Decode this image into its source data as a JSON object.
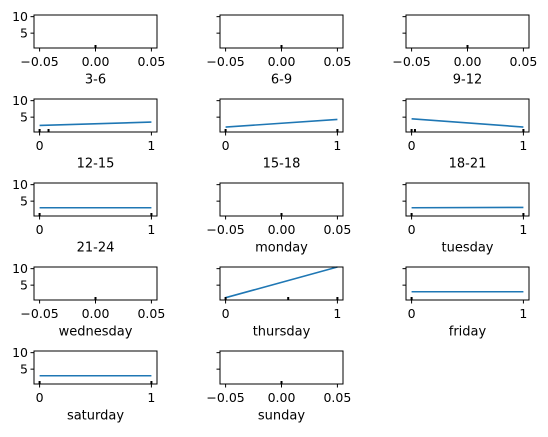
{
  "colors": {
    "line": "#1f77b4",
    "axes": "#000000",
    "marker": "#000000"
  },
  "chart_data": [
    {
      "type": "line",
      "xlabel": "",
      "xlim": [
        -0.055,
        0.055
      ],
      "ylim": [
        0.5,
        10.5
      ],
      "xticks": [
        -0.05,
        0.0,
        0.05
      ],
      "xtick_labels": [
        "−0.05",
        "0.00",
        "0.05"
      ],
      "yticks": [
        5,
        10
      ],
      "ytick_labels": [
        "5",
        "10"
      ],
      "show_ytick_labels": true,
      "series": [
        {
          "x": [
            0
          ],
          "y": [
            1
          ]
        }
      ],
      "markers": [
        {
          "x": 0,
          "y": 1
        }
      ]
    },
    {
      "type": "line",
      "xlabel": "",
      "xlim": [
        -0.055,
        0.055
      ],
      "ylim": [
        0.5,
        10.5
      ],
      "xticks": [
        -0.05,
        0.0,
        0.05
      ],
      "xtick_labels": [
        "−0.05",
        "0.00",
        "0.05"
      ],
      "yticks": [
        5,
        10
      ],
      "ytick_labels": [
        "5",
        "10"
      ],
      "show_ytick_labels": false,
      "series": [
        {
          "x": [
            0
          ],
          "y": [
            1
          ]
        }
      ],
      "markers": [
        {
          "x": 0,
          "y": 1
        }
      ]
    },
    {
      "type": "line",
      "xlabel": "",
      "xlim": [
        -0.055,
        0.055
      ],
      "ylim": [
        0.5,
        10.5
      ],
      "xticks": [
        -0.05,
        0.0,
        0.05
      ],
      "xtick_labels": [
        "−0.05",
        "0.00",
        "0.05"
      ],
      "yticks": [
        5,
        10
      ],
      "ytick_labels": [
        "5",
        "10"
      ],
      "show_ytick_labels": false,
      "series": [
        {
          "x": [
            0
          ],
          "y": [
            1
          ]
        }
      ],
      "markers": [
        {
          "x": 0,
          "y": 1
        }
      ]
    },
    {
      "type": "line",
      "xlabel": "3-6",
      "xlim": [
        -0.05,
        1.05
      ],
      "ylim": [
        0.5,
        10.5
      ],
      "xticks": [
        0,
        1
      ],
      "xtick_labels": [
        "0",
        "1"
      ],
      "yticks": [
        5,
        10
      ],
      "ytick_labels": [
        "5",
        "10"
      ],
      "show_ytick_labels": true,
      "series": [
        {
          "x": [
            0,
            1
          ],
          "y": [
            2.5,
            3.5
          ]
        }
      ],
      "markers": [
        {
          "x": 0,
          "y": 1
        },
        {
          "x": 0.08,
          "y": 1
        }
      ]
    },
    {
      "type": "line",
      "xlabel": "6-9",
      "xlim": [
        -0.05,
        1.05
      ],
      "ylim": [
        0.5,
        10.5
      ],
      "xticks": [
        0,
        1
      ],
      "xtick_labels": [
        "0",
        "1"
      ],
      "yticks": [
        5,
        10
      ],
      "ytick_labels": [
        "5",
        "10"
      ],
      "show_ytick_labels": false,
      "series": [
        {
          "x": [
            0,
            1
          ],
          "y": [
            2,
            4.3
          ]
        }
      ],
      "markers": [
        {
          "x": 0,
          "y": 1
        },
        {
          "x": 1,
          "y": 1
        }
      ]
    },
    {
      "type": "line",
      "xlabel": "9-12",
      "xlim": [
        -0.05,
        1.05
      ],
      "ylim": [
        0.5,
        10.5
      ],
      "xticks": [
        0,
        1
      ],
      "xtick_labels": [
        "0",
        "1"
      ],
      "yticks": [
        5,
        10
      ],
      "ytick_labels": [
        "5",
        "10"
      ],
      "show_ytick_labels": false,
      "series": [
        {
          "x": [
            0,
            1
          ],
          "y": [
            4.5,
            2
          ]
        }
      ],
      "markers": [
        {
          "x": 0,
          "y": 1
        },
        {
          "x": 0.03,
          "y": 1
        },
        {
          "x": 1,
          "y": 1
        }
      ]
    },
    {
      "type": "line",
      "xlabel": "12-15",
      "xlim": [
        -0.05,
        1.05
      ],
      "ylim": [
        0.5,
        10.5
      ],
      "xticks": [
        0,
        1
      ],
      "xtick_labels": [
        "0",
        "1"
      ],
      "yticks": [
        5,
        10
      ],
      "ytick_labels": [
        "5",
        "10"
      ],
      "show_ytick_labels": true,
      "series": [
        {
          "x": [
            0,
            1
          ],
          "y": [
            3,
            3
          ]
        }
      ],
      "markers": [
        {
          "x": 0,
          "y": 1
        },
        {
          "x": 1,
          "y": 1
        }
      ]
    },
    {
      "type": "line",
      "xlabel": "15-18",
      "xlim": [
        -0.055,
        0.055
      ],
      "ylim": [
        0.5,
        10.5
      ],
      "xticks": [
        -0.05,
        0.0,
        0.05
      ],
      "xtick_labels": [
        "−0.05",
        "0.00",
        "0.05"
      ],
      "yticks": [
        5,
        10
      ],
      "ytick_labels": [
        "5",
        "10"
      ],
      "show_ytick_labels": false,
      "series": [
        {
          "x": [
            0
          ],
          "y": [
            1
          ]
        }
      ],
      "markers": [
        {
          "x": 0,
          "y": 1
        }
      ]
    },
    {
      "type": "line",
      "xlabel": "18-21",
      "xlim": [
        -0.05,
        1.05
      ],
      "ylim": [
        0.5,
        10.5
      ],
      "xticks": [
        0,
        1
      ],
      "xtick_labels": [
        "0",
        "1"
      ],
      "yticks": [
        5,
        10
      ],
      "ytick_labels": [
        "5",
        "10"
      ],
      "show_ytick_labels": false,
      "series": [
        {
          "x": [
            0,
            1
          ],
          "y": [
            3,
            3.1
          ]
        }
      ],
      "markers": [
        {
          "x": 0,
          "y": 1
        },
        {
          "x": 1,
          "y": 1
        }
      ]
    },
    {
      "type": "line",
      "xlabel": "21-24",
      "xlim": [
        -0.055,
        0.055
      ],
      "ylim": [
        0.5,
        10.5
      ],
      "xticks": [
        -0.05,
        0.0,
        0.05
      ],
      "xtick_labels": [
        "−0.05",
        "0.00",
        "0.05"
      ],
      "yticks": [
        5,
        10
      ],
      "ytick_labels": [
        "5",
        "10"
      ],
      "show_ytick_labels": true,
      "series": [
        {
          "x": [
            0
          ],
          "y": [
            1
          ]
        }
      ],
      "markers": [
        {
          "x": 0,
          "y": 1
        }
      ]
    },
    {
      "type": "line",
      "xlabel": "monday",
      "xlim": [
        -0.05,
        1.05
      ],
      "ylim": [
        0.5,
        10.5
      ],
      "xticks": [
        0,
        1
      ],
      "xtick_labels": [
        "0",
        "1"
      ],
      "yticks": [
        5,
        10
      ],
      "ytick_labels": [
        "5",
        "10"
      ],
      "show_ytick_labels": false,
      "series": [
        {
          "x": [
            0,
            1
          ],
          "y": [
            1.2,
            10.5
          ]
        }
      ],
      "markers": [
        {
          "x": 0,
          "y": 1
        },
        {
          "x": 0.56,
          "y": 1
        },
        {
          "x": 1,
          "y": 1
        }
      ]
    },
    {
      "type": "line",
      "xlabel": "tuesday",
      "xlim": [
        -0.05,
        1.05
      ],
      "ylim": [
        0.5,
        10.5
      ],
      "xticks": [
        0,
        1
      ],
      "xtick_labels": [
        "0",
        "1"
      ],
      "yticks": [
        5,
        10
      ],
      "ytick_labels": [
        "5",
        "10"
      ],
      "show_ytick_labels": false,
      "series": [
        {
          "x": [
            0,
            1
          ],
          "y": [
            3,
            3
          ]
        }
      ],
      "markers": [
        {
          "x": 0,
          "y": 1
        }
      ]
    },
    {
      "type": "line",
      "xlabel": "wednesday",
      "xlim": [
        -0.05,
        1.05
      ],
      "ylim": [
        0.5,
        10.5
      ],
      "xticks": [
        0,
        1
      ],
      "xtick_labels": [
        "0",
        "1"
      ],
      "yticks": [
        5,
        10
      ],
      "ytick_labels": [
        "5",
        "10"
      ],
      "show_ytick_labels": true,
      "series": [
        {
          "x": [
            0,
            1
          ],
          "y": [
            3,
            3
          ]
        }
      ],
      "markers": [
        {
          "x": 0,
          "y": 1
        },
        {
          "x": 1,
          "y": 1
        }
      ]
    },
    {
      "type": "line",
      "xlabel": "thursday",
      "xlim": [
        -0.055,
        0.055
      ],
      "ylim": [
        0.5,
        10.5
      ],
      "xticks": [
        -0.05,
        0.0,
        0.05
      ],
      "xtick_labels": [
        "−0.05",
        "0.00",
        "0.05"
      ],
      "yticks": [
        5,
        10
      ],
      "ytick_labels": [
        "5",
        "10"
      ],
      "show_ytick_labels": false,
      "series": [
        {
          "x": [
            0
          ],
          "y": [
            1
          ]
        }
      ],
      "markers": [
        {
          "x": 0,
          "y": 1
        }
      ]
    },
    {
      "type": "line",
      "xlabel": "friday",
      "xlim": [],
      "ylim": [],
      "xticks": [],
      "xtick_labels": [],
      "yticks": [],
      "ytick_labels": [],
      "show_ytick_labels": false,
      "series": [],
      "markers": [],
      "hidden": true
    },
    {
      "type": "line",
      "xlabel": "saturday",
      "xlim": [],
      "ylim": [],
      "xticks": [],
      "xtick_labels": [],
      "yticks": [],
      "ytick_labels": [],
      "show_ytick_labels": false,
      "series": [],
      "markers": [],
      "hidden": true
    },
    {
      "type": "line",
      "xlabel": "sunday",
      "xlim": [],
      "ylim": [],
      "xticks": [],
      "xtick_labels": [],
      "yticks": [],
      "ytick_labels": [],
      "show_ytick_labels": false,
      "series": [],
      "markers": [],
      "hidden": true
    }
  ]
}
